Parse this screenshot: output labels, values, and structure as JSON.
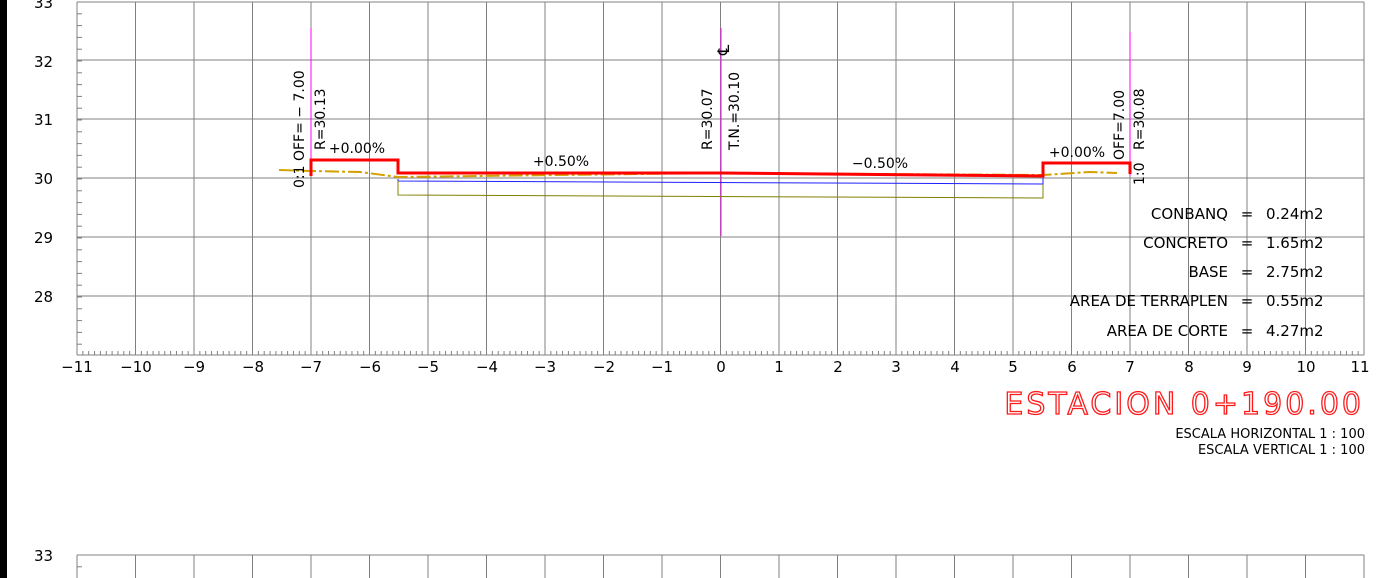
{
  "section1": {
    "y_labels": [
      "33",
      "32",
      "31",
      "30",
      "29",
      "28"
    ],
    "x_labels": [
      "−11",
      "−10",
      "−9",
      "−8",
      "−7",
      "−6",
      "−5",
      "−4",
      "−3",
      "−2",
      "−1",
      "0",
      "1",
      "2",
      "3",
      "4",
      "5",
      "6",
      "7",
      "8",
      "9",
      "10",
      "11"
    ],
    "slopes": {
      "left_berm": "+0.00%",
      "left_lane": "+0.50%",
      "right_lane": "−0.50%",
      "right_berm": "+0.00%"
    },
    "vertical_labels": {
      "left_offset": "0:1 OFF= − 7.00",
      "left_r": "R=30.13",
      "center_r": "R=30.07",
      "center_tn": "T.N.=30.10",
      "centerline_symbol": "℄",
      "right_offset": "OFF=7.00",
      "right_r": "R=30.08",
      "right_ratio": "1:0"
    },
    "areas": [
      {
        "label": "CONBANQ",
        "eq": "=",
        "value": "0.24m2"
      },
      {
        "label": "CONCRETO",
        "eq": "=",
        "value": "1.65m2"
      },
      {
        "label": "BASE",
        "eq": "=",
        "value": "2.75m2"
      },
      {
        "label": "AREA DE TERRAPLEN",
        "eq": "=",
        "value": "0.55m2"
      },
      {
        "label": "AREA DE CORTE",
        "eq": "=",
        "value": "4.27m2"
      }
    ],
    "station": "ESTACION 0+190.00",
    "scale_horizontal": "ESCALA HORIZONTAL 1 : 100",
    "scale_vertical": "ESCALA VERTICAL 1 : 100",
    "colors": {
      "surface": "#ff0000",
      "ground": "#d4a000",
      "base": "#2020ff",
      "subgrade": "#808000",
      "centerline": "#ff00ff",
      "station": "#ff1a1a"
    }
  },
  "section2": {
    "y_label": "33"
  }
}
